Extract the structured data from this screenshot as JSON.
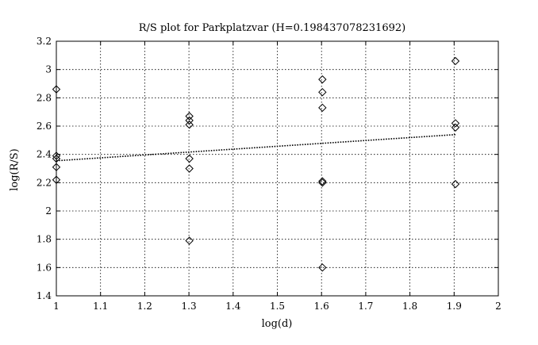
{
  "chart_data": {
    "type": "scatter",
    "title": "R/S plot for Parkplatzvar (H=0.198437078231692)",
    "xlabel": "log(d)",
    "ylabel": "log(R/S)",
    "xlim": [
      1,
      2
    ],
    "ylim": [
      1.4,
      3.2
    ],
    "xticks": [
      1,
      1.1,
      1.2,
      1.3,
      1.4,
      1.5,
      1.6,
      1.7,
      1.8,
      1.9,
      2
    ],
    "yticks": [
      1.4,
      1.6,
      1.8,
      2,
      2.2,
      2.4,
      2.6,
      2.8,
      3,
      3.2
    ],
    "grid": true,
    "marker": "diamond",
    "series": [
      {
        "points": [
          {
            "x": 1.0,
            "y": 2.86
          },
          {
            "x": 1.0,
            "y": 2.39
          },
          {
            "x": 1.0,
            "y": 2.37
          },
          {
            "x": 1.0,
            "y": 2.31
          },
          {
            "x": 1.0,
            "y": 2.22
          },
          {
            "x": 1.301,
            "y": 2.67
          },
          {
            "x": 1.301,
            "y": 2.64
          },
          {
            "x": 1.301,
            "y": 2.61
          },
          {
            "x": 1.301,
            "y": 2.37
          },
          {
            "x": 1.301,
            "y": 2.3
          },
          {
            "x": 1.301,
            "y": 1.79
          },
          {
            "x": 1.602,
            "y": 2.93
          },
          {
            "x": 1.602,
            "y": 2.84
          },
          {
            "x": 1.602,
            "y": 2.73
          },
          {
            "x": 1.602,
            "y": 2.21
          },
          {
            "x": 1.602,
            "y": 2.2
          },
          {
            "x": 1.602,
            "y": 1.6
          },
          {
            "x": 1.903,
            "y": 3.06
          },
          {
            "x": 1.903,
            "y": 2.62
          },
          {
            "x": 1.903,
            "y": 2.59
          },
          {
            "x": 1.903,
            "y": 2.19
          }
        ]
      }
    ],
    "fit_line": {
      "x": [
        1.0,
        1.903
      ],
      "y": [
        2.355,
        2.54
      ]
    }
  }
}
